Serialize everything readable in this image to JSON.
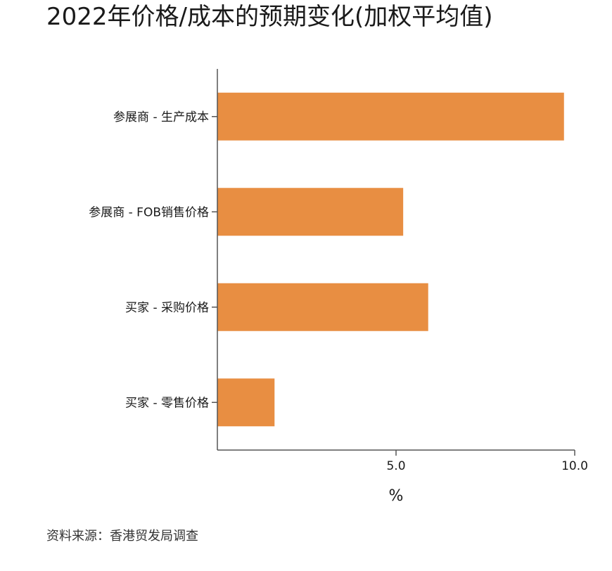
{
  "chart_data": {
    "type": "bar",
    "orientation": "horizontal",
    "title": "2022年价格/成本的预期变化(加权平均值)",
    "categories": [
      "参展商 - 生产成本",
      "参展商 - FOB销售价格",
      "买家 - 采购价格",
      "买家 - 零售价格"
    ],
    "values": [
      9.7,
      5.2,
      5.9,
      1.6
    ],
    "xlabel": "%",
    "ylabel": "",
    "xlim": [
      0,
      10
    ],
    "x_ticks": [
      {
        "value": 5,
        "label": "5.0"
      },
      {
        "value": 10,
        "label": "10.0"
      }
    ],
    "grid": false,
    "colors": {
      "bar": "#e88e42",
      "axis": "#555555",
      "text": "#1a1a1a"
    }
  },
  "footer": {
    "source": "资料来源：香港贸发局调查"
  }
}
